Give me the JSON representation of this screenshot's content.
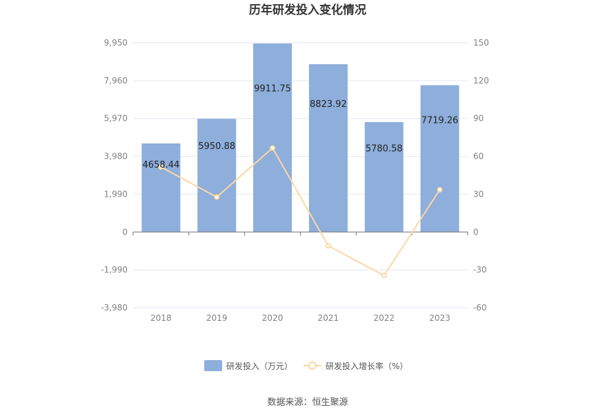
{
  "chart_data": {
    "type": "bar",
    "title": "历年研发投入变化情况",
    "categories": [
      "2018",
      "2019",
      "2020",
      "2021",
      "2022",
      "2023"
    ],
    "series": [
      {
        "name": "研发投入（万元）",
        "type": "bar",
        "axis": "left",
        "values": [
          4658.44,
          5950.88,
          9911.75,
          8823.92,
          5780.58,
          7719.26
        ],
        "labels": [
          "4658.44",
          "5950.88",
          "9911.75",
          "8823.92",
          "5780.58",
          "7719.26"
        ],
        "color": "#8eaedb"
      },
      {
        "name": "研发投入增长率（%）",
        "type": "line",
        "axis": "right",
        "values": [
          51.5,
          27.7,
          66.6,
          -11.0,
          -34.5,
          33.5
        ],
        "color": "#fbd8a3"
      }
    ],
    "y_left": {
      "ticks": [
        9950,
        7960,
        5970,
        3980,
        1990,
        0,
        -1990,
        -3980
      ],
      "tick_labels": [
        "9,950",
        "7,960",
        "5,970",
        "3,980",
        "1,990",
        "0",
        "-1,990",
        "-3,980"
      ],
      "ylim": [
        -3980,
        9950
      ]
    },
    "y_right": {
      "ticks": [
        150,
        120,
        90,
        60,
        30,
        0,
        -30,
        -60
      ],
      "tick_labels": [
        "150",
        "120",
        "90",
        "60",
        "30",
        "0",
        "-30",
        "-60"
      ],
      "ylim": [
        -60,
        150
      ]
    },
    "grid": true,
    "legend": "bottom-center"
  },
  "source_text": "数据来源：恒生聚源"
}
